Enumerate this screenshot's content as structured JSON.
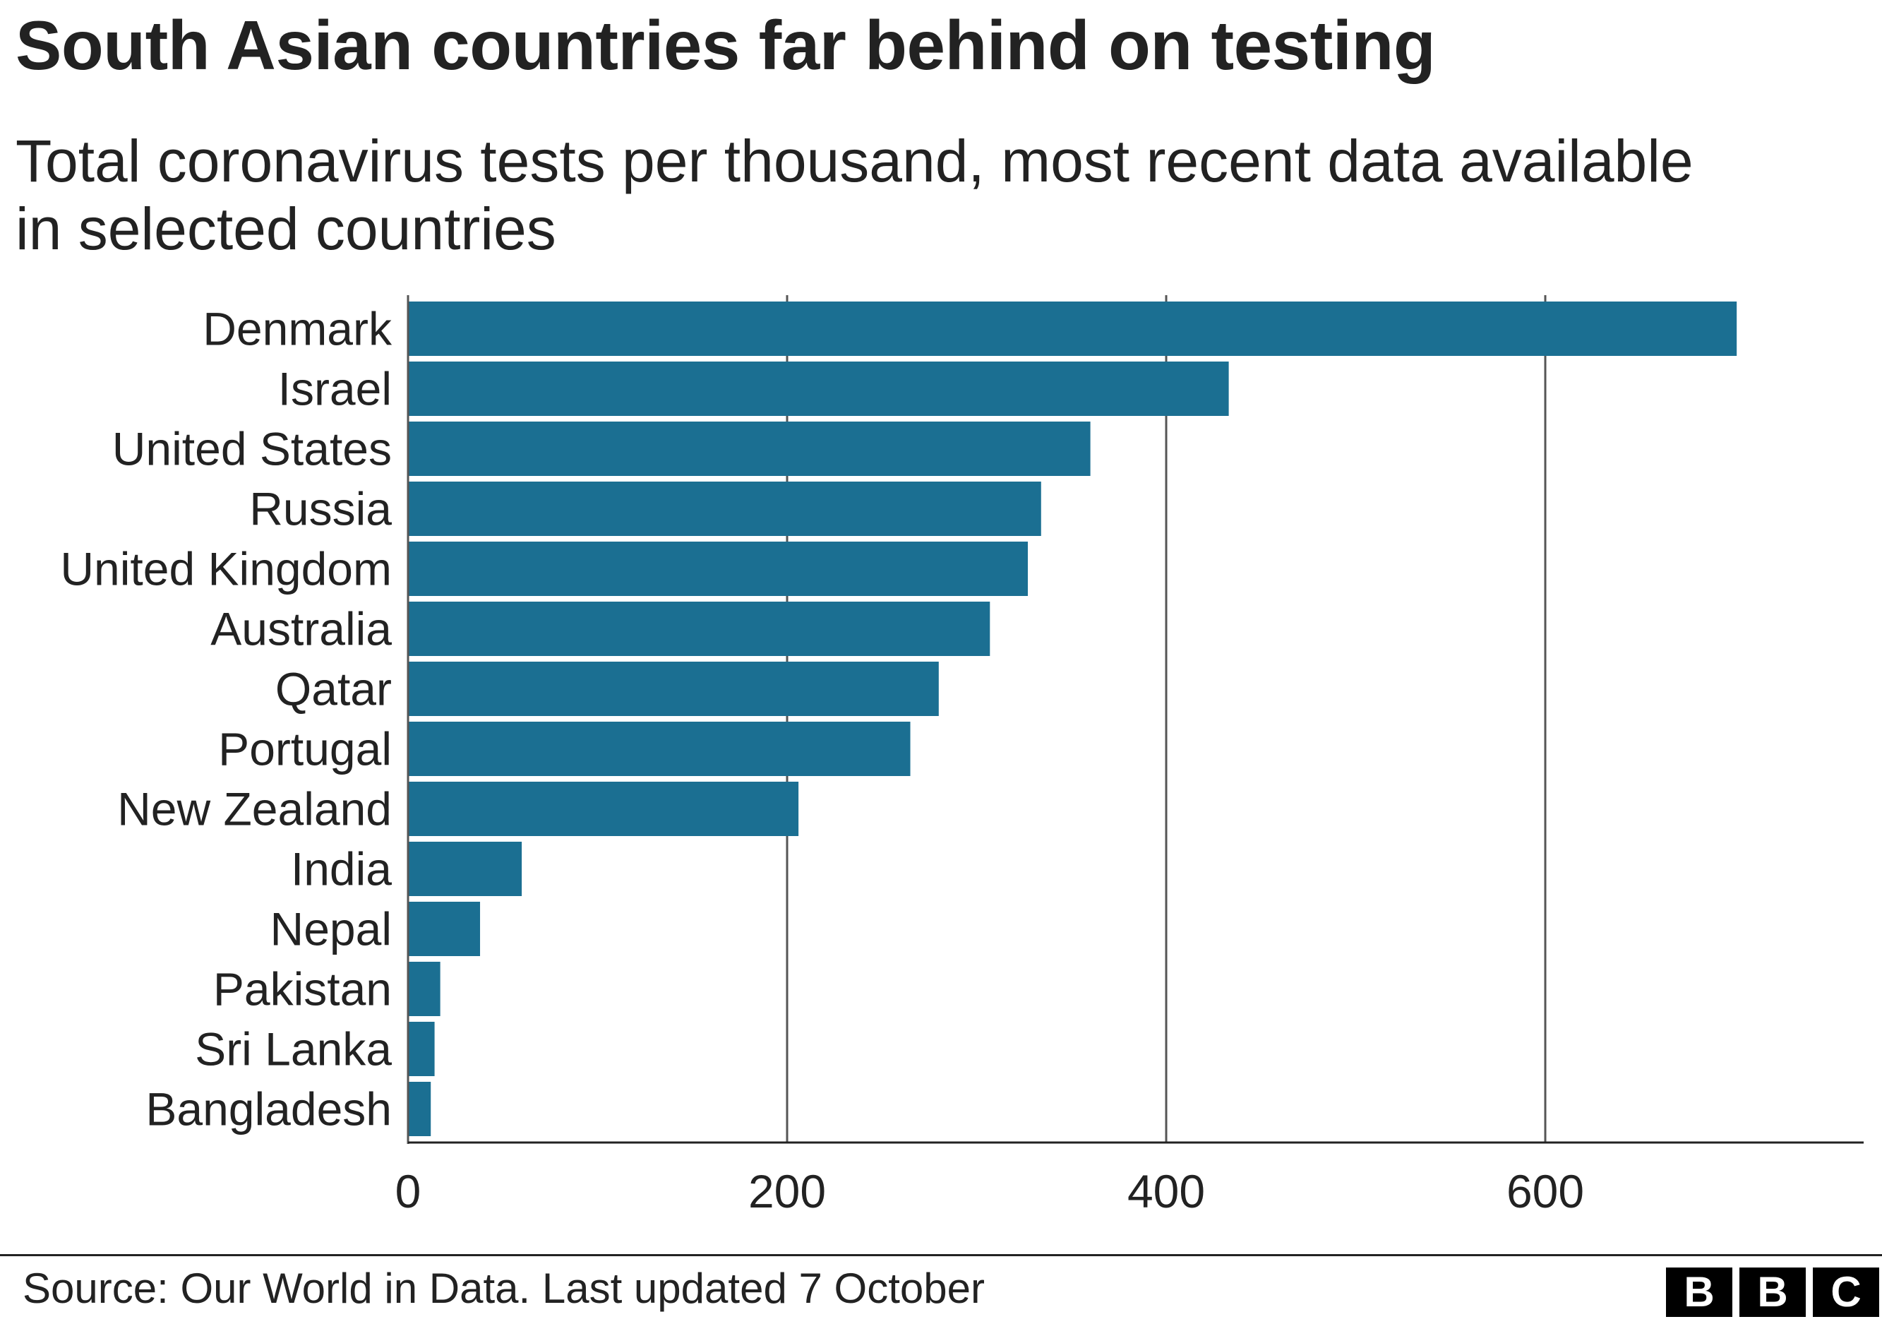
{
  "chart_data": {
    "type": "bar",
    "orientation": "horizontal",
    "title": "South Asian countries far behind on testing",
    "subtitle": "Total coronavirus tests per thousand, most recent data available in selected countries",
    "categories": [
      "Denmark",
      "Israel",
      "United States",
      "Russia",
      "United Kingdom",
      "Australia",
      "Qatar",
      "Portugal",
      "New Zealand",
      "India",
      "Nepal",
      "Pakistan",
      "Sri Lanka",
      "Bangladesh"
    ],
    "values": [
      701,
      433,
      360,
      334,
      327,
      307,
      280,
      265,
      206,
      60,
      38,
      17,
      14,
      12
    ],
    "xlim": [
      0,
      770
    ],
    "xticks": [
      "0",
      "200",
      "400",
      "600"
    ],
    "xtick_values": [
      0,
      200,
      400,
      600
    ],
    "xlabel": "",
    "ylabel": "",
    "grid": true,
    "bar_color": "#1b6f92"
  },
  "footer": {
    "source": "Source: Our World in Data. Last updated 7 October",
    "logo_letters": [
      "B",
      "B",
      "C"
    ]
  }
}
